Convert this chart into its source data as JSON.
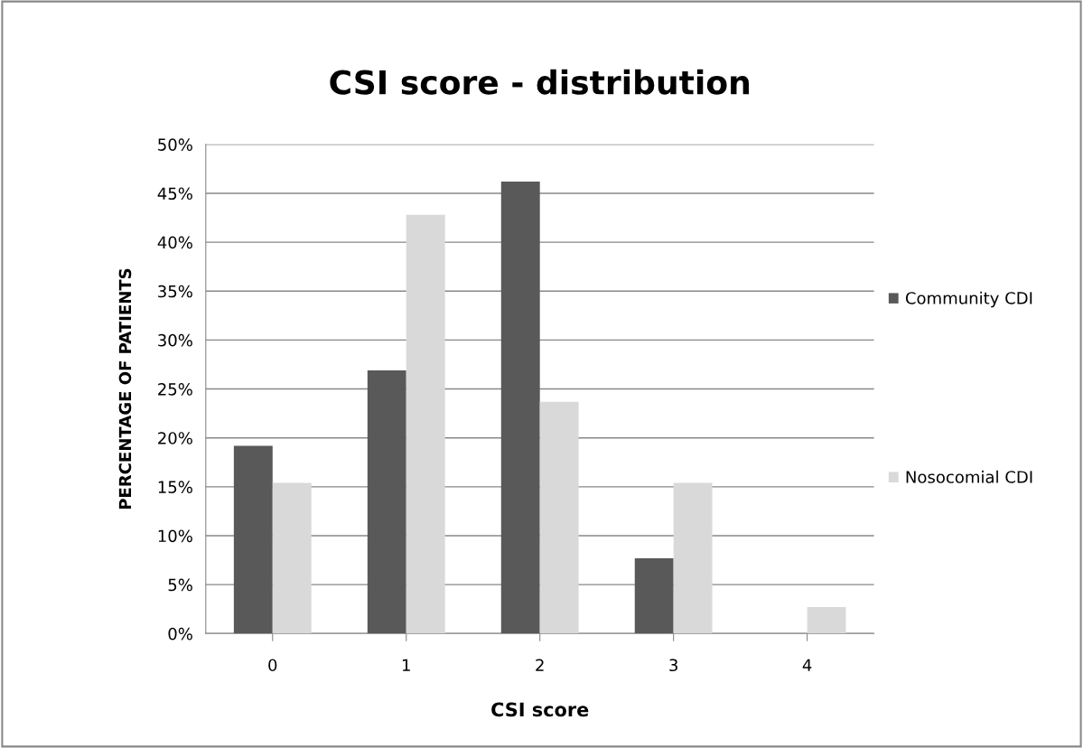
{
  "chart_data": {
    "type": "bar",
    "title": "CSI score - distribution",
    "xlabel": "CSI score",
    "ylabel": "PERCENTAGE OF PATIENTS",
    "categories": [
      "0",
      "1",
      "2",
      "3",
      "4"
    ],
    "series": [
      {
        "name": "Community CDI",
        "color": "#595959",
        "values": [
          19.2,
          26.9,
          46.2,
          7.7,
          0
        ]
      },
      {
        "name": "Nosocomial CDI",
        "color": "#d9d9d9",
        "values": [
          15.4,
          42.8,
          23.7,
          15.4,
          2.7
        ]
      }
    ],
    "ylim": [
      0,
      50
    ],
    "yticks": [
      {
        "value": 0,
        "label": "0%"
      },
      {
        "value": 5,
        "label": "5%"
      },
      {
        "value": 10,
        "label": "10%"
      },
      {
        "value": 15,
        "label": "15%"
      },
      {
        "value": 20,
        "label": "20%"
      },
      {
        "value": 25,
        "label": "25%"
      },
      {
        "value": 30,
        "label": "30%"
      },
      {
        "value": 35,
        "label": "35%"
      },
      {
        "value": 40,
        "label": "40%"
      },
      {
        "value": 45,
        "label": "45%"
      },
      {
        "value": 50,
        "label": "50%"
      }
    ],
    "grid": "y",
    "legend": "right"
  }
}
